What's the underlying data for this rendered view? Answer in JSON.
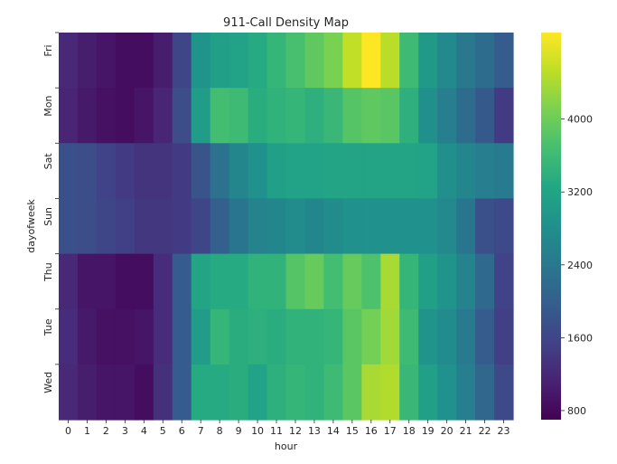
{
  "chart_data": {
    "type": "heatmap",
    "title": "911-Call Density Map",
    "xlabel": "hour",
    "ylabel": "dayofweek",
    "x": [
      "0",
      "1",
      "2",
      "3",
      "4",
      "5",
      "6",
      "7",
      "8",
      "9",
      "10",
      "11",
      "12",
      "13",
      "14",
      "15",
      "16",
      "17",
      "18",
      "19",
      "20",
      "21",
      "22",
      "23"
    ],
    "y": [
      "Fri",
      "Mon",
      "Sat",
      "Sun",
      "Thu",
      "Tue",
      "Wed"
    ],
    "values": [
      [
        1200,
        1050,
        950,
        850,
        850,
        1050,
        1600,
        2900,
        3100,
        3150,
        3300,
        3500,
        3700,
        3900,
        4100,
        4550,
        4950,
        4500,
        3600,
        3000,
        2700,
        2400,
        2200,
        1950
      ],
      [
        1150,
        1000,
        900,
        850,
        950,
        1150,
        1700,
        3050,
        3650,
        3600,
        3350,
        3450,
        3500,
        3400,
        3550,
        3800,
        3900,
        3850,
        3400,
        2800,
        2500,
        2200,
        1900,
        1450
      ],
      [
        1750,
        1700,
        1550,
        1450,
        1350,
        1350,
        1450,
        1800,
        2300,
        2650,
        2850,
        3100,
        3150,
        3150,
        3200,
        3200,
        3200,
        3200,
        3200,
        3150,
        2800,
        2650,
        2500,
        2450
      ],
      [
        1750,
        1700,
        1600,
        1500,
        1400,
        1400,
        1450,
        1600,
        2000,
        2350,
        2600,
        2650,
        2750,
        2650,
        2750,
        2850,
        2850,
        2850,
        2850,
        2850,
        2700,
        2350,
        1750,
        1650
      ],
      [
        1200,
        950,
        950,
        850,
        850,
        1250,
        1950,
        3200,
        3300,
        3300,
        3450,
        3450,
        3800,
        3950,
        3650,
        3950,
        3750,
        4400,
        3500,
        3100,
        2900,
        2600,
        2150,
        1550
      ],
      [
        1250,
        1000,
        900,
        900,
        950,
        1250,
        1950,
        3050,
        3500,
        3350,
        3400,
        3350,
        3450,
        3450,
        3500,
        3850,
        4050,
        4350,
        3600,
        2900,
        2750,
        2450,
        1950,
        1500
      ],
      [
        1200,
        1050,
        950,
        950,
        850,
        1300,
        1950,
        3300,
        3300,
        3350,
        3150,
        3400,
        3500,
        3450,
        3600,
        3850,
        4400,
        4450,
        3550,
        3100,
        2850,
        2500,
        2100,
        1650
      ]
    ],
    "colorbar": {
      "min": 700,
      "max": 4950,
      "ticks": [
        "800",
        "1600",
        "2400",
        "3200",
        "4000"
      ],
      "tick_values": [
        800,
        1600,
        2400,
        3200,
        4000
      ]
    },
    "colormap": "viridis"
  }
}
